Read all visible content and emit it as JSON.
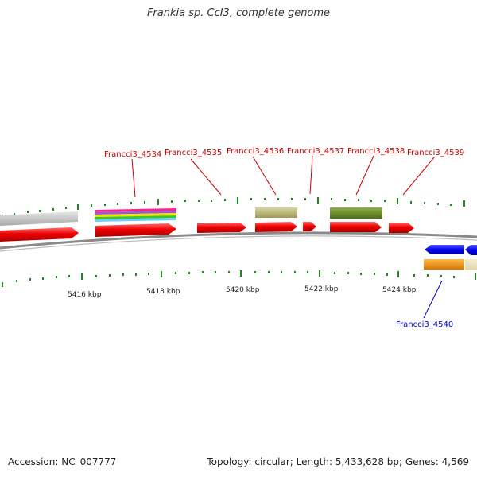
{
  "header": {
    "title": "Frankia sp. CcI3, complete genome"
  },
  "footer": {
    "accession": "Accession: NC_007777",
    "stats": "Topology: circular; Length: 5,433,628 bp; Genes: 4,569"
  },
  "genes_forward": [
    {
      "label": "Francci3_4534"
    },
    {
      "label": "Francci3_4535"
    },
    {
      "label": "Francci3_4536"
    },
    {
      "label": "Francci3_4537"
    },
    {
      "label": "Francci3_4538"
    },
    {
      "label": "Francci3_4539"
    }
  ],
  "genes_reverse": [
    {
      "label": "Francci3_4540"
    }
  ],
  "scale_labels": [
    "5416 kbp",
    "5418 kbp",
    "5420 kbp",
    "5422 kbp",
    "5424 kbp"
  ],
  "colors": {
    "cds_forward": "#e8000b",
    "cds_reverse": "#0000ee",
    "backbone": "#888888",
    "tick": "#1a8a1a",
    "feature_olive": "#bdb97a",
    "feature_green": "#6b8e23",
    "feature_orange": "#ff9900",
    "feature_grey": "#c8c8c8"
  }
}
